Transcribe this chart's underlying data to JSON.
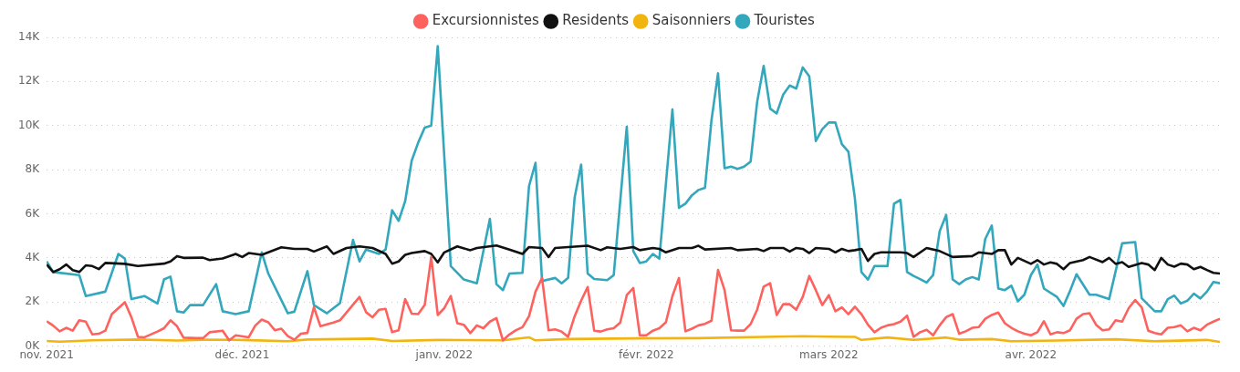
{
  "chart_data": {
    "type": "line",
    "legend": "top",
    "grid": "y",
    "marker": "none",
    "line_style": "solid",
    "xlim": [
      "2021-11-01",
      "2022-04-30"
    ],
    "xticks": [
      {
        "value": "2021-11-01",
        "label": "nov. 2021"
      },
      {
        "value": "2021-12-01",
        "label": "déc. 2021"
      },
      {
        "value": "2022-01-01",
        "label": "janv. 2022"
      },
      {
        "value": "2022-02-01",
        "label": "févr. 2022"
      },
      {
        "value": "2022-03-01",
        "label": "mars 2022"
      },
      {
        "value": "2022-04-01",
        "label": "avr. 2022"
      }
    ],
    "ylim": [
      0,
      14000
    ],
    "yticks": [
      {
        "value": 0,
        "label": "0K"
      },
      {
        "value": 2000,
        "label": "2K"
      },
      {
        "value": 4000,
        "label": "4K"
      },
      {
        "value": 6000,
        "label": "6K"
      },
      {
        "value": 8000,
        "label": "8K"
      },
      {
        "value": 10000,
        "label": "10K"
      },
      {
        "value": 12000,
        "label": "12K"
      },
      {
        "value": 14000,
        "label": "14K"
      }
    ],
    "series": [
      {
        "name": "Excursionnistes",
        "color": "#fd625e",
        "x": [
          "2021-11-01",
          "2021-11-02",
          "2021-11-03",
          "2021-11-04",
          "2021-11-05",
          "2021-11-06",
          "2021-11-07",
          "2021-11-08",
          "2021-11-09",
          "2021-11-10",
          "2021-11-11",
          "2021-11-13",
          "2021-11-14",
          "2021-11-15",
          "2021-11-16",
          "2021-11-18",
          "2021-11-19",
          "2021-11-20",
          "2021-11-21",
          "2021-11-22",
          "2021-11-24",
          "2021-11-25",
          "2021-11-26",
          "2021-11-28",
          "2021-11-29",
          "2021-11-30",
          "2021-12-02",
          "2021-12-03",
          "2021-12-04",
          "2021-12-05",
          "2021-12-06",
          "2021-12-07",
          "2021-12-08",
          "2021-12-09",
          "2021-12-10",
          "2021-12-11",
          "2021-12-12",
          "2021-12-13",
          "2021-12-15",
          "2021-12-16",
          "2021-12-19",
          "2021-12-20",
          "2021-12-21",
          "2021-12-22",
          "2021-12-23",
          "2021-12-24",
          "2021-12-25",
          "2021-12-26",
          "2021-12-27",
          "2021-12-28",
          "2021-12-29",
          "2021-12-30",
          "2021-12-31",
          "2022-01-01",
          "2022-01-02",
          "2022-01-03",
          "2022-01-04",
          "2022-01-05",
          "2022-01-06",
          "2022-01-07",
          "2022-01-08",
          "2022-01-09",
          "2022-01-10",
          "2022-01-11",
          "2022-01-12",
          "2022-01-13",
          "2022-01-14",
          "2022-01-15",
          "2022-01-16",
          "2022-01-17",
          "2022-01-18",
          "2022-01-19",
          "2022-01-20",
          "2022-01-21",
          "2022-01-22",
          "2022-01-23",
          "2022-01-24",
          "2022-01-25",
          "2022-01-26",
          "2022-01-27",
          "2022-01-28",
          "2022-01-29",
          "2022-01-30",
          "2022-01-31",
          "2022-02-01",
          "2022-02-02",
          "2022-02-03",
          "2022-02-04",
          "2022-02-05",
          "2022-02-06",
          "2022-02-07",
          "2022-02-08",
          "2022-02-09",
          "2022-02-10",
          "2022-02-11",
          "2022-02-12",
          "2022-02-13",
          "2022-02-14",
          "2022-02-15",
          "2022-02-16",
          "2022-02-17",
          "2022-02-18",
          "2022-02-19",
          "2022-02-20",
          "2022-02-21",
          "2022-02-22",
          "2022-02-23",
          "2022-02-24",
          "2022-02-25",
          "2022-02-26",
          "2022-02-27",
          "2022-02-28",
          "2022-03-01",
          "2022-03-02",
          "2022-03-03",
          "2022-03-04",
          "2022-03-05",
          "2022-03-06",
          "2022-03-07",
          "2022-03-08",
          "2022-03-09",
          "2022-03-10",
          "2022-03-11",
          "2022-03-12",
          "2022-03-13",
          "2022-03-14",
          "2022-03-15",
          "2022-03-16",
          "2022-03-17",
          "2022-03-18",
          "2022-03-19",
          "2022-03-20",
          "2022-03-21",
          "2022-03-22",
          "2022-03-23",
          "2022-03-24",
          "2022-03-25",
          "2022-03-26",
          "2022-03-27",
          "2022-03-28",
          "2022-03-29",
          "2022-03-30",
          "2022-03-31",
          "2022-04-01",
          "2022-04-02",
          "2022-04-03",
          "2022-04-04",
          "2022-04-05",
          "2022-04-06",
          "2022-04-07",
          "2022-04-08",
          "2022-04-09",
          "2022-04-10",
          "2022-04-11",
          "2022-04-12",
          "2022-04-13",
          "2022-04-14",
          "2022-04-15",
          "2022-04-16",
          "2022-04-17",
          "2022-04-18",
          "2022-04-19",
          "2022-04-20",
          "2022-04-21",
          "2022-04-22",
          "2022-04-23",
          "2022-04-24",
          "2022-04-25",
          "2022-04-26",
          "2022-04-27",
          "2022-04-28",
          "2022-04-29",
          "2022-04-30"
        ],
        "values": [
          1130,
          930,
          670,
          830,
          700,
          1170,
          1110,
          530,
          560,
          700,
          1450,
          1990,
          1310,
          420,
          400,
          660,
          810,
          1170,
          900,
          380,
          360,
          360,
          630,
          700,
          260,
          490,
          400,
          930,
          1200,
          1080,
          720,
          790,
          450,
          290,
          560,
          600,
          1760,
          900,
          1070,
          1170,
          2230,
          1540,
          1310,
          1650,
          1690,
          630,
          720,
          2130,
          1470,
          1450,
          1860,
          4040,
          1410,
          1720,
          2270,
          1040,
          970,
          590,
          940,
          810,
          1110,
          1270,
          260,
          530,
          720,
          860,
          1350,
          2470,
          3090,
          720,
          760,
          660,
          420,
          1350,
          2060,
          2680,
          700,
          660,
          760,
          810,
          1070,
          2310,
          2630,
          490,
          490,
          700,
          810,
          1080,
          2270,
          3090,
          670,
          790,
          940,
          1010,
          1150,
          3450,
          2540,
          720,
          700,
          700,
          1000,
          1650,
          2700,
          2850,
          1410,
          1900,
          1900,
          1650,
          2230,
          3180,
          2540,
          1860,
          2310,
          1580,
          1760,
          1450,
          1790,
          1450,
          970,
          630,
          830,
          940,
          1000,
          1110,
          1380,
          420,
          630,
          740,
          490,
          940,
          1310,
          1450,
          560,
          670,
          830,
          860,
          1240,
          1410,
          1520,
          1040,
          830,
          670,
          560,
          490,
          630,
          1130,
          530,
          630,
          590,
          720,
          1240,
          1450,
          1490,
          970,
          720,
          760,
          1170,
          1110,
          1720,
          2090,
          1760,
          700,
          590,
          530,
          830,
          860,
          940,
          670,
          830,
          720,
          970,
          1110,
          1240
        ]
      },
      {
        "name": "Residents",
        "color": "#111111",
        "x": [
          "2021-11-01",
          "2021-11-02",
          "2021-11-03",
          "2021-11-04",
          "2021-11-05",
          "2021-11-06",
          "2021-11-07",
          "2021-11-08",
          "2021-11-09",
          "2021-11-10",
          "2021-11-13",
          "2021-11-15",
          "2021-11-19",
          "2021-11-20",
          "2021-11-21",
          "2021-11-22",
          "2021-11-25",
          "2021-11-26",
          "2021-11-28",
          "2021-11-30",
          "2021-12-01",
          "2021-12-02",
          "2021-12-04",
          "2021-12-05",
          "2021-12-07",
          "2021-12-09",
          "2021-12-11",
          "2021-12-12",
          "2021-12-14",
          "2021-12-15",
          "2021-12-17",
          "2021-12-19",
          "2021-12-21",
          "2021-12-23",
          "2021-12-24",
          "2021-12-25",
          "2021-12-26",
          "2021-12-27",
          "2021-12-29",
          "2021-12-30",
          "2021-12-31",
          "2022-01-01",
          "2022-01-03",
          "2022-01-05",
          "2022-01-06",
          "2022-01-09",
          "2022-01-11",
          "2022-01-13",
          "2022-01-14",
          "2022-01-16",
          "2022-01-17",
          "2022-01-18",
          "2022-01-23",
          "2022-01-25",
          "2022-01-26",
          "2022-01-28",
          "2022-01-30",
          "2022-01-31",
          "2022-02-02",
          "2022-02-03",
          "2022-02-04",
          "2022-02-06",
          "2022-02-08",
          "2022-02-09",
          "2022-02-10",
          "2022-02-14",
          "2022-02-15",
          "2022-02-18",
          "2022-02-19",
          "2022-02-20",
          "2022-02-22",
          "2022-02-23",
          "2022-02-24",
          "2022-02-25",
          "2022-02-26",
          "2022-02-27",
          "2022-03-01",
          "2022-03-02",
          "2022-03-03",
          "2022-03-04",
          "2022-03-05",
          "2022-03-06",
          "2022-03-07",
          "2022-03-08",
          "2022-03-09",
          "2022-03-12",
          "2022-03-13",
          "2022-03-14",
          "2022-03-16",
          "2022-03-18",
          "2022-03-20",
          "2022-03-23",
          "2022-03-24",
          "2022-03-26",
          "2022-03-27",
          "2022-03-28",
          "2022-03-29",
          "2022-03-30",
          "2022-04-01",
          "2022-04-02",
          "2022-04-03",
          "2022-04-04",
          "2022-04-05",
          "2022-04-06",
          "2022-04-07",
          "2022-04-09",
          "2022-04-10",
          "2022-04-12",
          "2022-04-13",
          "2022-04-14",
          "2022-04-15",
          "2022-04-16",
          "2022-04-18",
          "2022-04-19",
          "2022-04-20",
          "2022-04-21",
          "2022-04-22",
          "2022-04-23",
          "2022-04-24",
          "2022-04-25",
          "2022-04-26",
          "2022-04-27",
          "2022-04-28",
          "2022-04-29",
          "2022-04-30"
        ],
        "values": [
          3700,
          3360,
          3490,
          3700,
          3450,
          3360,
          3660,
          3630,
          3490,
          3770,
          3730,
          3630,
          3740,
          3840,
          4080,
          4000,
          4010,
          3900,
          3970,
          4180,
          4040,
          4220,
          4140,
          4250,
          4480,
          4410,
          4410,
          4290,
          4520,
          4180,
          4450,
          4520,
          4450,
          4180,
          3740,
          3840,
          4140,
          4220,
          4310,
          4180,
          3800,
          4250,
          4520,
          4350,
          4450,
          4560,
          4380,
          4180,
          4490,
          4450,
          4040,
          4450,
          4550,
          4350,
          4480,
          4410,
          4490,
          4350,
          4450,
          4410,
          4250,
          4450,
          4450,
          4550,
          4380,
          4450,
          4350,
          4410,
          4310,
          4450,
          4450,
          4290,
          4450,
          4410,
          4220,
          4450,
          4410,
          4250,
          4410,
          4310,
          4350,
          4410,
          3860,
          4180,
          4250,
          4250,
          4220,
          4040,
          4450,
          4310,
          4040,
          4080,
          4250,
          4180,
          4350,
          4350,
          3700,
          4000,
          3730,
          3900,
          3700,
          3800,
          3730,
          3490,
          3770,
          3900,
          4040,
          3810,
          4000,
          3730,
          3810,
          3590,
          3770,
          3700,
          3450,
          4000,
          3700,
          3600,
          3740,
          3700,
          3490,
          3590,
          3450,
          3320,
          3290
        ]
      },
      {
        "name": "Saisonniers",
        "color": "#f2b40f",
        "x": [
          "2021-11-01",
          "2021-11-03",
          "2021-11-08",
          "2021-11-15",
          "2021-11-21",
          "2021-11-25",
          "2021-12-01",
          "2021-12-08",
          "2021-12-11",
          "2021-12-21",
          "2021-12-24",
          "2021-12-31",
          "2022-01-10",
          "2022-01-14",
          "2022-01-15",
          "2022-01-20",
          "2022-01-30",
          "2022-02-09",
          "2022-02-19",
          "2022-02-25",
          "2022-03-01",
          "2022-03-05",
          "2022-03-06",
          "2022-03-10",
          "2022-03-14",
          "2022-03-19",
          "2022-03-21",
          "2022-03-26",
          "2022-03-29",
          "2022-04-05",
          "2022-04-14",
          "2022-04-20",
          "2022-04-28",
          "2022-04-30"
        ],
        "values": [
          230,
          200,
          260,
          300,
          250,
          290,
          280,
          220,
          300,
          340,
          230,
          280,
          260,
          400,
          260,
          320,
          350,
          360,
          420,
          450,
          430,
          420,
          280,
          390,
          280,
          390,
          290,
          320,
          220,
          250,
          310,
          220,
          280,
          190
        ]
      },
      {
        "name": "Touristes",
        "color": "#33a7bc",
        "x": [
          "2021-11-01",
          "2021-11-02",
          "2021-11-06",
          "2021-11-07",
          "2021-11-10",
          "2021-11-12",
          "2021-11-13",
          "2021-11-14",
          "2021-11-16",
          "2021-11-18",
          "2021-11-19",
          "2021-11-20",
          "2021-11-21",
          "2021-11-22",
          "2021-11-23",
          "2021-11-25",
          "2021-11-27",
          "2021-11-28",
          "2021-11-30",
          "2021-12-02",
          "2021-12-04",
          "2021-12-05",
          "2021-12-08",
          "2021-12-09",
          "2021-12-11",
          "2021-12-12",
          "2021-12-14",
          "2021-12-16",
          "2021-12-18",
          "2021-12-19",
          "2021-12-20",
          "2021-12-22",
          "2021-12-23",
          "2021-12-24",
          "2021-12-25",
          "2021-12-26",
          "2021-12-27",
          "2021-12-28",
          "2021-12-29",
          "2021-12-30",
          "2021-12-31",
          "2022-01-02",
          "2022-01-04",
          "2022-01-06",
          "2022-01-08",
          "2022-01-09",
          "2022-01-10",
          "2022-01-11",
          "2022-01-13",
          "2022-01-14",
          "2022-01-15",
          "2022-01-16",
          "2022-01-18",
          "2022-01-19",
          "2022-01-20",
          "2022-01-21",
          "2022-01-22",
          "2022-01-23",
          "2022-01-24",
          "2022-01-26",
          "2022-01-27",
          "2022-01-29",
          "2022-01-30",
          "2022-01-31",
          "2022-02-01",
          "2022-02-02",
          "2022-02-03",
          "2022-02-05",
          "2022-02-06",
          "2022-02-07",
          "2022-02-08",
          "2022-02-09",
          "2022-02-10",
          "2022-02-11",
          "2022-02-12",
          "2022-02-13",
          "2022-02-14",
          "2022-02-15",
          "2022-02-16",
          "2022-02-17",
          "2022-02-18",
          "2022-02-19",
          "2022-02-20",
          "2022-02-21",
          "2022-02-22",
          "2022-02-23",
          "2022-02-24",
          "2022-02-25",
          "2022-02-26",
          "2022-02-27",
          "2022-02-28",
          "2022-03-01",
          "2022-03-02",
          "2022-03-03",
          "2022-03-04",
          "2022-03-05",
          "2022-03-06",
          "2022-03-07",
          "2022-03-08",
          "2022-03-10",
          "2022-03-11",
          "2022-03-12",
          "2022-03-13",
          "2022-03-14",
          "2022-03-15",
          "2022-03-16",
          "2022-03-17",
          "2022-03-18",
          "2022-03-19",
          "2022-03-20",
          "2022-03-21",
          "2022-03-22",
          "2022-03-23",
          "2022-03-24",
          "2022-03-25",
          "2022-03-26",
          "2022-03-27",
          "2022-03-28",
          "2022-03-29",
          "2022-03-30",
          "2022-03-31",
          "2022-04-01",
          "2022-04-02",
          "2022-04-03",
          "2022-04-05",
          "2022-04-06",
          "2022-04-07",
          "2022-04-08",
          "2022-04-10",
          "2022-04-11",
          "2022-04-13",
          "2022-04-15",
          "2022-04-17",
          "2022-04-18",
          "2022-04-20",
          "2022-04-21",
          "2022-04-22",
          "2022-04-23",
          "2022-04-24",
          "2022-04-25",
          "2022-04-26",
          "2022-04-27",
          "2022-04-28",
          "2022-04-29",
          "2022-04-30"
        ],
        "values": [
          3840,
          3360,
          3220,
          2270,
          2470,
          4180,
          3970,
          2130,
          2270,
          1930,
          3020,
          3150,
          1580,
          1520,
          1860,
          1860,
          2810,
          1580,
          1450,
          1580,
          4250,
          3290,
          1490,
          1560,
          3400,
          1860,
          1490,
          1950,
          4820,
          3840,
          4380,
          4180,
          4380,
          6160,
          5680,
          6570,
          8410,
          9230,
          9910,
          10000,
          13600,
          3630,
          3020,
          2850,
          5770,
          2810,
          2540,
          3290,
          3320,
          7250,
          8310,
          2950,
          3090,
          2850,
          3090,
          6730,
          8230,
          3290,
          3040,
          2990,
          3220,
          9950,
          4310,
          3770,
          3840,
          4180,
          3970,
          10730,
          6270,
          6460,
          6840,
          7080,
          7180,
          10250,
          12370,
          8070,
          8140,
          8040,
          8140,
          8370,
          11070,
          12710,
          10770,
          10550,
          11410,
          11820,
          11680,
          12640,
          12230,
          9300,
          9840,
          10140,
          10140,
          9160,
          8820,
          6700,
          3360,
          3020,
          3630,
          3630,
          6460,
          6630,
          3360,
          3180,
          3040,
          2880,
          3220,
          5200,
          5950,
          3020,
          2810,
          3020,
          3130,
          3020,
          4860,
          5470,
          2610,
          2540,
          2740,
          2030,
          2330,
          3220,
          3700,
          2610,
          2230,
          1820,
          2500,
          3260,
          2330,
          2330,
          2130,
          4660,
          4720,
          2170,
          1580,
          1580,
          2130,
          2290,
          1930,
          2060,
          2380,
          2160,
          2470,
          2910,
          2850
        ]
      }
    ]
  }
}
